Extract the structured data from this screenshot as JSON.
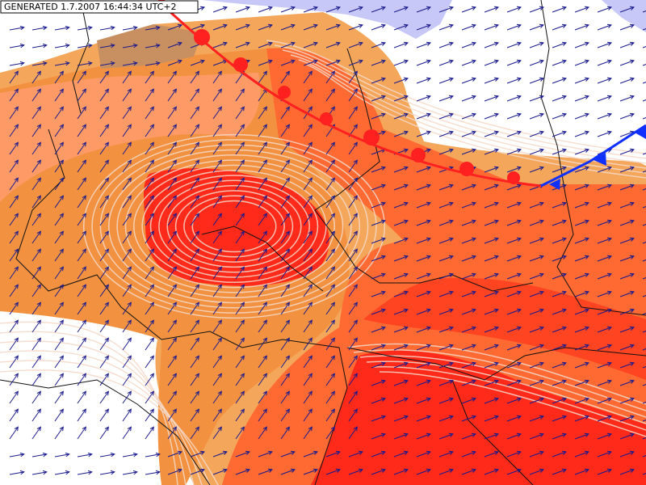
{
  "header": {
    "generated": "GENERATED 1.7.2007 16:44:34 UTC+2"
  }
}
